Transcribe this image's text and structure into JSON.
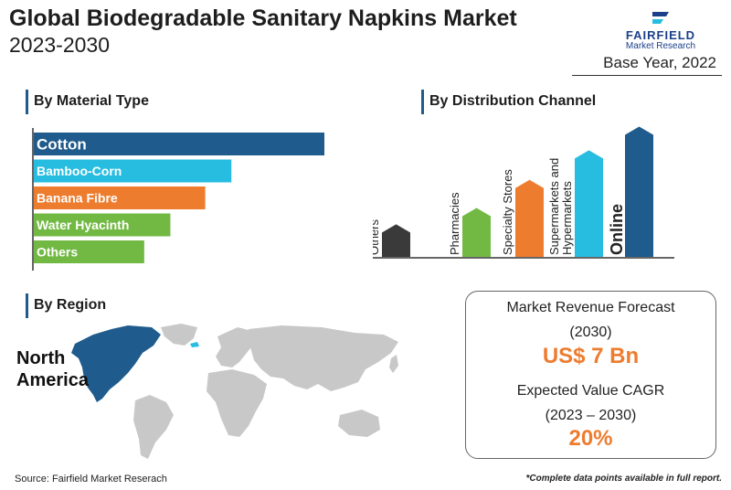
{
  "header": {
    "title_line1": "Global Biodegradable Sanitary Napkins Market",
    "title_line2": "2023-2030",
    "base_year": "Base Year, 2022"
  },
  "logo": {
    "name": "FAIRFIELD",
    "subtitle": "Market Research",
    "color": "#1b3f8b"
  },
  "sections": {
    "material": "By Material Type",
    "distribution": "By Distribution Channel",
    "region": "By Region"
  },
  "region": {
    "highlight": "North America",
    "highlight_color": "#1f5b8c",
    "base_color": "#c8c8c8"
  },
  "forecast": {
    "revenue_label": "Market Revenue Forecast",
    "revenue_year": "(2030)",
    "revenue_value": "US$ 7 Bn",
    "cagr_label": "Expected Value CAGR",
    "cagr_period": "(2023 – 2030)",
    "cagr_value": "20%"
  },
  "footer": {
    "source": "Source: Fairfield Market Reserach",
    "note": "*Complete data points available in full report."
  },
  "chart_data": [
    {
      "type": "bar",
      "orientation": "horizontal",
      "title": "By Material Type",
      "categories": [
        "Cotton",
        "Bamboo-Corn",
        "Banana Fibre",
        "Water Hyacinth",
        "Others"
      ],
      "values": [
        100,
        68,
        59,
        47,
        38
      ],
      "colors": [
        "#1f5b8c",
        "#27bde0",
        "#ee7c2f",
        "#72b944",
        "#72b944"
      ],
      "xlim": [
        0,
        100
      ]
    },
    {
      "type": "bar",
      "title": "By Distribution Channel",
      "categories": [
        "Others",
        "Pharmacies",
        "Specialty Stores",
        "Supermarkets and Hypermarkets",
        "Online"
      ],
      "values": [
        22,
        33,
        52,
        72,
        88
      ],
      "colors": [
        "#3a3a3a",
        "#72b944",
        "#ee7c2f",
        "#27bde0",
        "#1f5b8c"
      ],
      "ylim": [
        0,
        100
      ]
    }
  ]
}
